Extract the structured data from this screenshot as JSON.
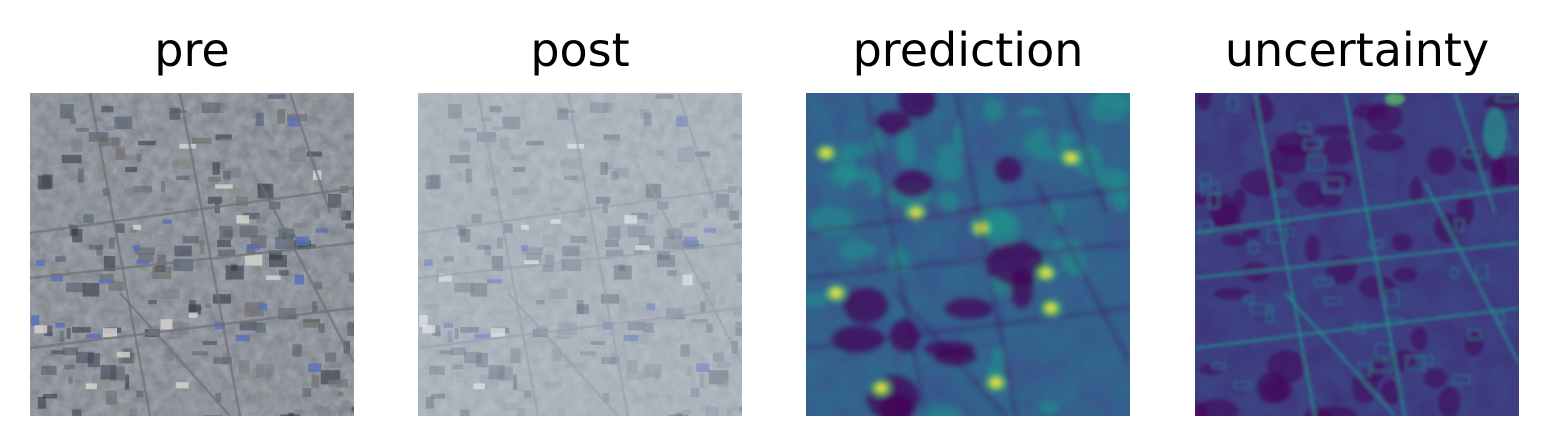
{
  "panels": [
    {
      "title": "pre",
      "kind": "satellite-rgb",
      "palette": [
        "#3f4453",
        "#5a5f6c",
        "#7a7c84",
        "#2f3440",
        "#8b8a86",
        "#4b5a6e",
        "#6b6660"
      ]
    },
    {
      "title": "post",
      "kind": "satellite-hazy",
      "palette": [
        "#6f7b8a",
        "#7f8a98",
        "#8e98a6",
        "#66717f",
        "#9aa3ae",
        "#75808f",
        "#a4aab2"
      ]
    },
    {
      "title": "prediction",
      "kind": "heatmap-viridis",
      "palette": [
        "#440154",
        "#3b528b",
        "#21908c",
        "#5dc963",
        "#fde725"
      ]
    },
    {
      "title": "uncertainty",
      "kind": "heatmap-viridis-low",
      "palette": [
        "#440154",
        "#3b528b",
        "#21908c",
        "#5dc963",
        "#fde725"
      ]
    }
  ]
}
